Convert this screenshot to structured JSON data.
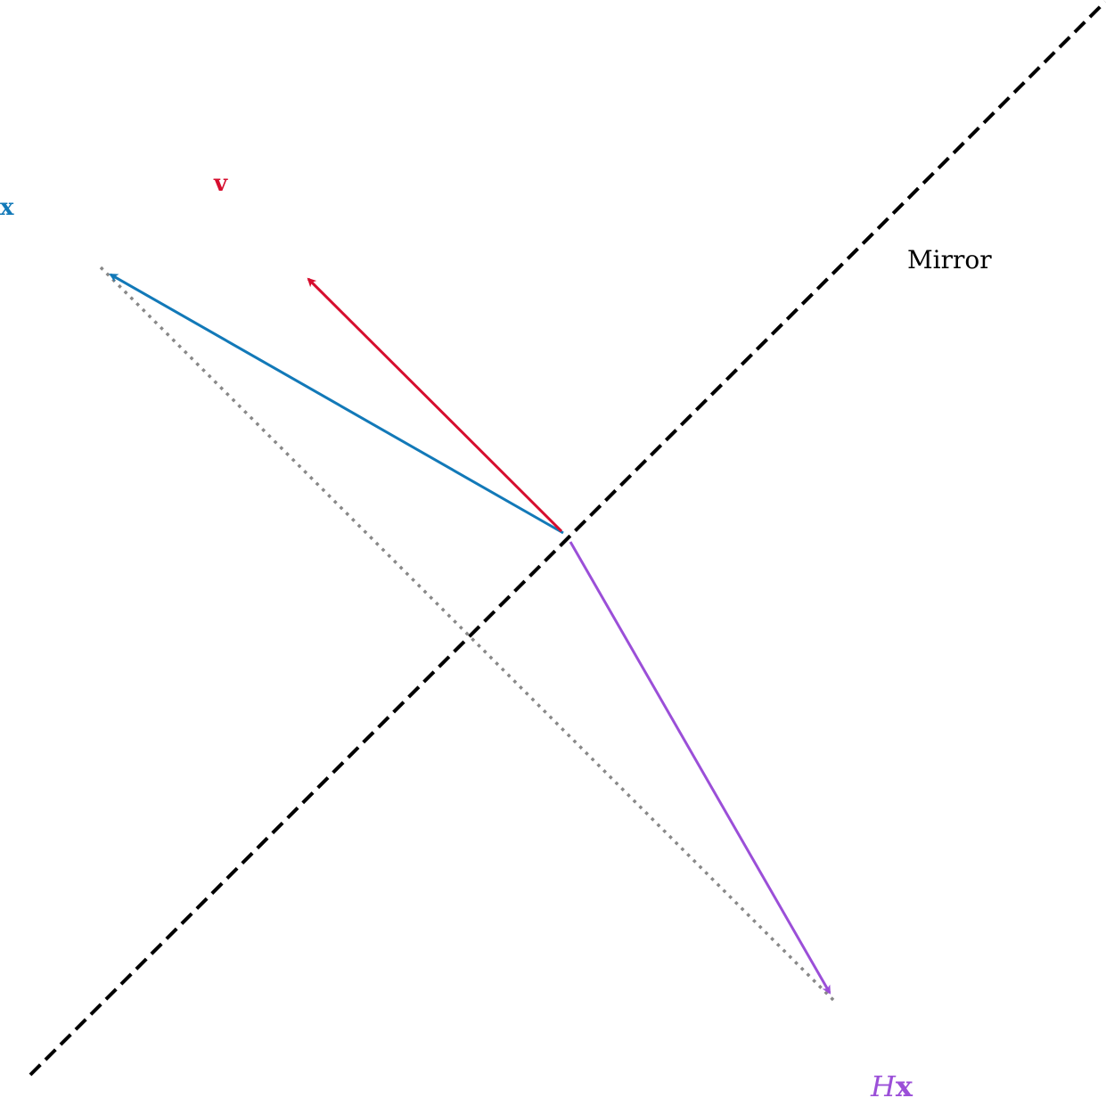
{
  "labels": {
    "x_vector": "x",
    "v_vector": "v",
    "hx_prefix": "H",
    "hx_suffix": "x",
    "mirror": "Mirror"
  },
  "colors": {
    "x_vector": "#1279b8",
    "v_vector": "#d60e2e",
    "hx_vector": "#9b4fd8",
    "mirror": "#000000",
    "projection": "#888888"
  },
  "elements": {
    "mirror_line": "dashed",
    "projection_line": "dotted"
  }
}
